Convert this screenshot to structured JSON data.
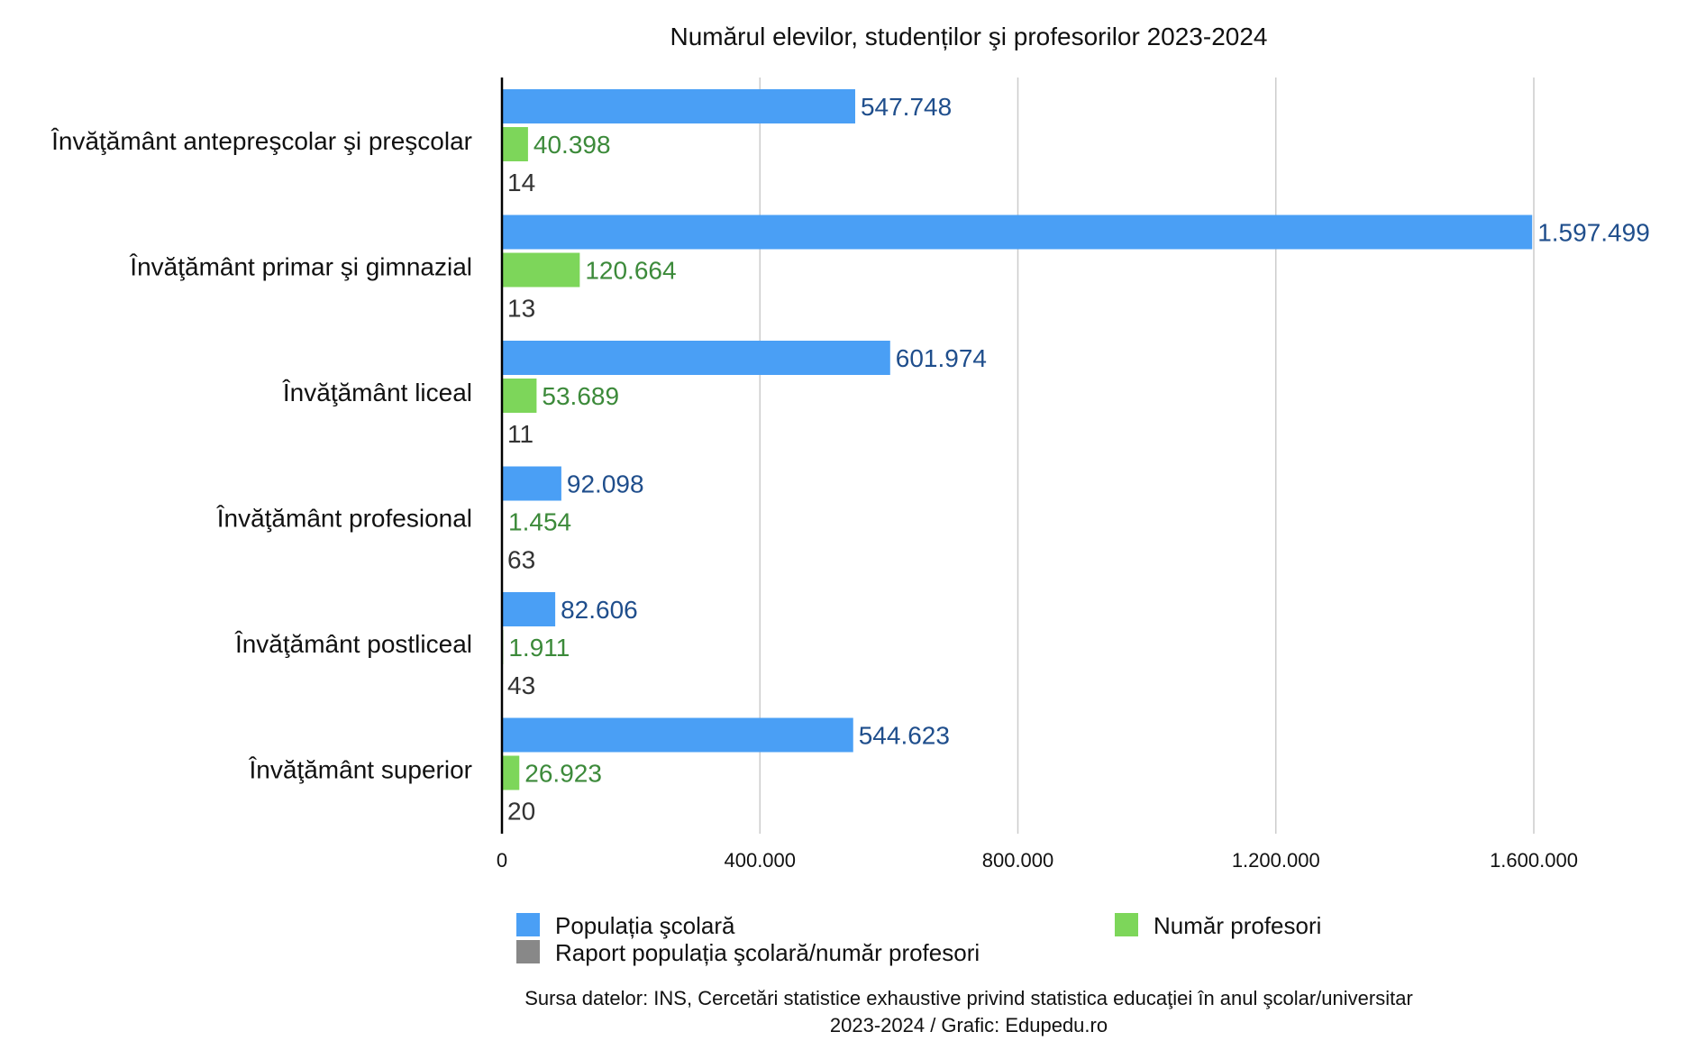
{
  "chart_data": {
    "type": "bar",
    "orientation": "horizontal",
    "title": "Numărul elevilor, studenților şi profesorilor 2023-2024",
    "categories": [
      "Învăţământ antepreşcolar şi preşcolar",
      "Învăţământ primar şi gimnazial",
      "Învăţământ liceal",
      "Învăţământ profesional",
      "Învăţământ postliceal",
      "Învăţământ superior"
    ],
    "series": [
      {
        "name": "Populația şcolară",
        "color": "#4a9ff5",
        "label_color": "#1f4e8c",
        "values": [
          547748,
          1597499,
          601974,
          92098,
          82606,
          544623
        ],
        "labels": [
          "547.748",
          "1.597.499",
          "601.974",
          "92.098",
          "82.606",
          "544.623"
        ]
      },
      {
        "name": "Număr profesori",
        "color": "#7dd65a",
        "label_color": "#3c8a3a",
        "values": [
          40398,
          120664,
          53689,
          1454,
          1911,
          26923
        ],
        "labels": [
          "40.398",
          "120.664",
          "53.689",
          "1.454",
          "1.911",
          "26.923"
        ]
      },
      {
        "name": "Raport populația şcolară/număr profesori",
        "color": "#888888",
        "label_color": "#333333",
        "values": [
          14,
          13,
          11,
          63,
          43,
          20
        ],
        "labels": [
          "14",
          "13",
          "11",
          "63",
          "43",
          "20"
        ]
      }
    ],
    "xlim": [
      0,
      1750000
    ],
    "xticks": [
      0,
      400000,
      800000,
      1200000,
      1600000
    ],
    "xtick_labels": [
      "0",
      "400.000",
      "800.000",
      "1.200.000",
      "1.600.000"
    ],
    "grid": "vertical",
    "legend_position": "bottom",
    "source_lines": [
      "Sursa datelor: INS, Cercetări statistice exhaustive privind statistica educaţiei în anul şcolar/universitar",
      "2023-2024 / Grafic: Edupedu.ro"
    ]
  }
}
